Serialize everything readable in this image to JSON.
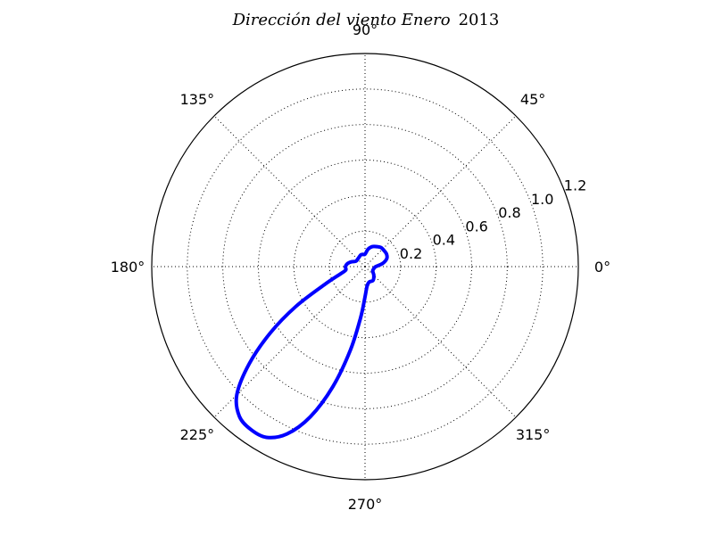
{
  "chart_data": {
    "type": "line",
    "projection": "polar",
    "title": {
      "italic_part": "Dirección del viento Enero",
      "year": "2013"
    },
    "theta_unit": "degrees",
    "theta_ticks": [
      {
        "value": 0,
        "label": "0°"
      },
      {
        "value": 45,
        "label": "45°"
      },
      {
        "value": 90,
        "label": "90°"
      },
      {
        "value": 135,
        "label": "135°"
      },
      {
        "value": 180,
        "label": "180°"
      },
      {
        "value": 225,
        "label": "225°"
      },
      {
        "value": 270,
        "label": "270°"
      },
      {
        "value": 315,
        "label": "315°"
      }
    ],
    "r_ticks": [
      {
        "value": 0.2,
        "label": "0.2"
      },
      {
        "value": 0.4,
        "label": "0.4"
      },
      {
        "value": 0.6,
        "label": "0.6"
      },
      {
        "value": 0.8,
        "label": "0.8"
      },
      {
        "value": 1.0,
        "label": "1.0"
      },
      {
        "value": 1.2,
        "label": "1.2"
      }
    ],
    "rlim": [
      0,
      1.2
    ],
    "grid": true,
    "series": [
      {
        "color": "#0000ff",
        "points": [
          {
            "theta": 0,
            "r": 0.06
          },
          {
            "theta": 10,
            "r": 0.1
          },
          {
            "theta": 20,
            "r": 0.13
          },
          {
            "theta": 30,
            "r": 0.14
          },
          {
            "theta": 40,
            "r": 0.14
          },
          {
            "theta": 50,
            "r": 0.14
          },
          {
            "theta": 60,
            "r": 0.13
          },
          {
            "theta": 70,
            "r": 0.12
          },
          {
            "theta": 80,
            "r": 0.1
          },
          {
            "theta": 90,
            "r": 0.07
          },
          {
            "theta": 100,
            "r": 0.07
          },
          {
            "theta": 110,
            "r": 0.07
          },
          {
            "theta": 130,
            "r": 0.06
          },
          {
            "theta": 150,
            "r": 0.06
          },
          {
            "theta": 160,
            "r": 0.08
          },
          {
            "theta": 170,
            "r": 0.1
          },
          {
            "theta": 180,
            "r": 0.11
          },
          {
            "theta": 190,
            "r": 0.11
          },
          {
            "theta": 196,
            "r": 0.14
          },
          {
            "theta": 204,
            "r": 0.25
          },
          {
            "theta": 210,
            "r": 0.45
          },
          {
            "theta": 215,
            "r": 0.65
          },
          {
            "theta": 220,
            "r": 0.85
          },
          {
            "theta": 225,
            "r": 1.02
          },
          {
            "theta": 230,
            "r": 1.1
          },
          {
            "theta": 235,
            "r": 1.12
          },
          {
            "theta": 240,
            "r": 1.11
          },
          {
            "theta": 245,
            "r": 1.04
          },
          {
            "theta": 250,
            "r": 0.9
          },
          {
            "theta": 255,
            "r": 0.7
          },
          {
            "theta": 260,
            "r": 0.48
          },
          {
            "theta": 265,
            "r": 0.29
          },
          {
            "theta": 270,
            "r": 0.17
          },
          {
            "theta": 276,
            "r": 0.11
          },
          {
            "theta": 285,
            "r": 0.09
          },
          {
            "theta": 300,
            "r": 0.09
          },
          {
            "theta": 315,
            "r": 0.07
          },
          {
            "theta": 330,
            "r": 0.05
          },
          {
            "theta": 345,
            "r": 0.05
          },
          {
            "theta": 360,
            "r": 0.06
          }
        ]
      }
    ]
  }
}
